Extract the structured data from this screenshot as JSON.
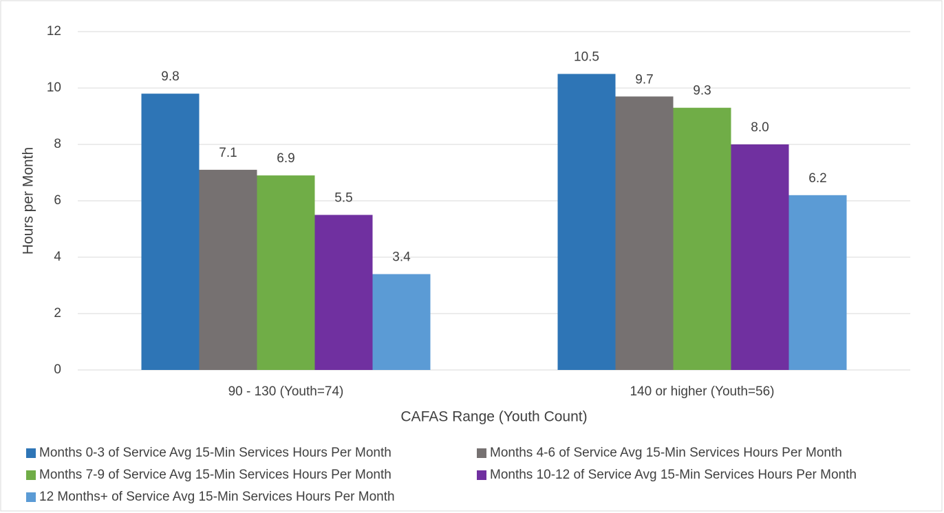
{
  "chart_data": {
    "type": "bar",
    "x_label": "CAFAS Range (Youth Count)",
    "y_label": "Hours per Month",
    "categories": [
      "90 - 130 (Youth=74)",
      "140 or higher (Youth=56)"
    ],
    "series": [
      {
        "name": "Months 0-3 of Service Avg 15-Min Services Hours Per Month",
        "color": "#2e75b6",
        "values": [
          9.8,
          10.5
        ],
        "value_labels": [
          "9.8",
          "10.5"
        ]
      },
      {
        "name": "Months 4-6 of Service Avg 15-Min Services Hours Per Month",
        "color": "#767171",
        "values": [
          7.1,
          9.7
        ],
        "value_labels": [
          "7.1",
          "9.7"
        ]
      },
      {
        "name": "Months 7-9 of Service Avg 15-Min Services Hours Per Month",
        "color": "#70ad47",
        "values": [
          6.9,
          9.3
        ],
        "value_labels": [
          "6.9",
          "9.3"
        ]
      },
      {
        "name": "Months 10-12 of Service Avg 15-Min Services Hours Per Month",
        "color": "#7030a0",
        "values": [
          5.5,
          8.0
        ],
        "value_labels": [
          "5.5",
          "8.0"
        ]
      },
      {
        "name": "12 Months+ of Service Avg 15-Min Services Hours Per Month",
        "color": "#5b9bd5",
        "values": [
          3.4,
          6.2
        ],
        "value_labels": [
          "3.4",
          "6.2"
        ]
      }
    ],
    "ylim": [
      0,
      12
    ],
    "yticks": [
      0,
      2,
      4,
      6,
      8,
      10,
      12
    ],
    "grid": true,
    "legend": "bottom"
  }
}
